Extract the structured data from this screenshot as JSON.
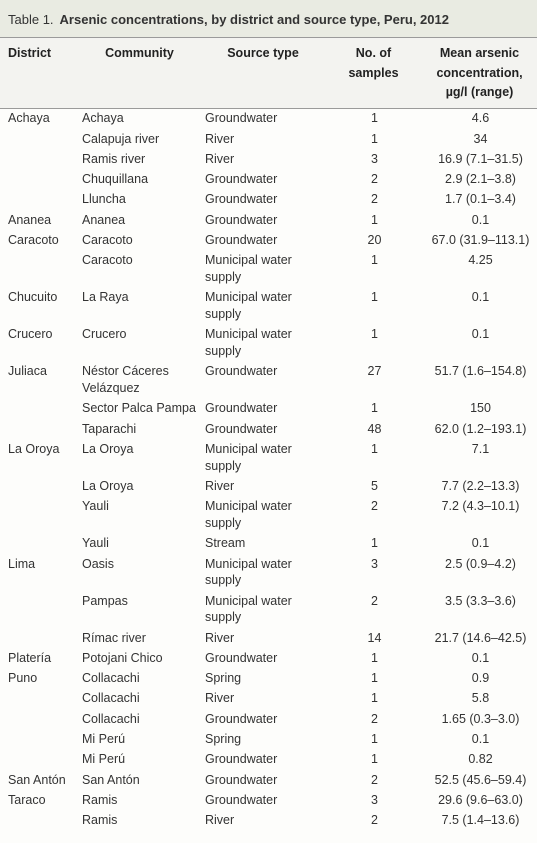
{
  "table_label": "Table 1.",
  "title": "Arsenic concentrations, by district and source type, Peru, 2012",
  "header": [
    "District",
    "Community",
    "Source type",
    "No. of samples",
    "Mean arsenic concentration, µg/l (range)"
  ],
  "groups": [
    {
      "district": "Achaya",
      "rows": [
        [
          "Achaya",
          "Groundwater",
          "1",
          "4.6"
        ],
        [
          "Calapuja river",
          "River",
          "1",
          "34"
        ],
        [
          "Ramis river",
          "River",
          "3",
          "16.9 (7.1–31.5)"
        ],
        [
          "Chuquillana",
          "Groundwater",
          "2",
          "2.9 (2.1–3.8)"
        ],
        [
          "Lluncha",
          "Groundwater",
          "2",
          "1.7 (0.1–3.4)"
        ]
      ]
    },
    {
      "district": "Ananea",
      "rows": [
        [
          "Ananea",
          "Groundwater",
          "1",
          "0.1"
        ]
      ]
    },
    {
      "district": "Caracoto",
      "rows": [
        [
          "Caracoto",
          "Groundwater",
          "20",
          "67.0 (31.9–113.1)"
        ],
        [
          "Caracoto",
          "Municipal water supply",
          "1",
          "4.25"
        ]
      ]
    },
    {
      "district": "Chucuito",
      "rows": [
        [
          "La Raya",
          "Municipal water supply",
          "1",
          "0.1"
        ]
      ]
    },
    {
      "district": "Crucero",
      "rows": [
        [
          "Crucero",
          "Municipal water supply",
          "1",
          "0.1"
        ]
      ]
    },
    {
      "district": "Juliaca",
      "rows": [
        [
          "Néstor Cáceres Velázquez",
          "Groundwater",
          "27",
          "51.7 (1.6–154.8)"
        ],
        [
          "Sector Palca Pampa",
          "Groundwater",
          "1",
          "150"
        ],
        [
          "Taparachi",
          "Groundwater",
          "48",
          "62.0 (1.2–193.1)"
        ]
      ]
    },
    {
      "district": "La Oroya",
      "rows": [
        [
          "La Oroya",
          "Municipal water supply",
          "1",
          "7.1"
        ],
        [
          "La Oroya",
          "River",
          "5",
          "7.7 (2.2–13.3)"
        ],
        [
          "Yauli",
          "Municipal water supply",
          "2",
          "7.2 (4.3–10.1)"
        ],
        [
          "Yauli",
          "Stream",
          "1",
          "0.1"
        ]
      ]
    },
    {
      "district": "Lima",
      "rows": [
        [
          "Oasis",
          "Municipal water supply",
          "3",
          "2.5 (0.9–4.2)"
        ],
        [
          "Pampas",
          "Municipal water supply",
          "2",
          "3.5 (3.3–3.6)"
        ],
        [
          "Rímac river",
          "River",
          "14",
          "21.7 (14.6–42.5)"
        ]
      ]
    },
    {
      "district": "Platería",
      "rows": [
        [
          "Potojani Chico",
          "Groundwater",
          "1",
          "0.1"
        ]
      ]
    },
    {
      "district": "Puno",
      "rows": [
        [
          "Collacachi",
          "Spring",
          "1",
          "0.9"
        ],
        [
          "Collacachi",
          "River",
          "1",
          "5.8"
        ],
        [
          "Collacachi",
          "Groundwater",
          "2",
          "1.65 (0.3–3.0)"
        ],
        [
          "Mi Perú",
          "Spring",
          "1",
          "0.1"
        ],
        [
          "Mi Perú",
          "Groundwater",
          "1",
          "0.82"
        ]
      ]
    },
    {
      "district": "San Antón",
      "rows": [
        [
          "San Antón",
          "Groundwater",
          "2",
          "52.5 (45.6–59.4)"
        ]
      ]
    },
    {
      "district": "Taraco",
      "rows": [
        [
          "Ramis",
          "Groundwater",
          "3",
          "29.6 (9.6–63.0)"
        ],
        [
          "Ramis",
          "River",
          "2",
          "7.5 (1.4–13.6)"
        ]
      ]
    }
  ]
}
